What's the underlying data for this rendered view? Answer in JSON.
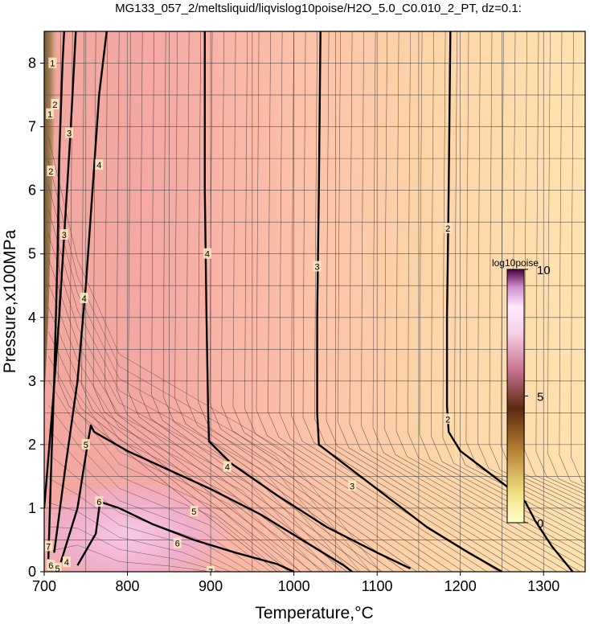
{
  "chart_data": {
    "type": "heatmap",
    "title": "MG133_057_2/meltsliquid/liqvislog10poise/H2O_5.0_C0.010_2_PT, dz=0.1:",
    "xlabel": "Temperature,°C",
    "ylabel": "Pressure,x100MPa",
    "xlim": [
      700,
      1350
    ],
    "ylim": [
      0,
      8.5
    ],
    "xticks": [
      "700",
      "800",
      "900",
      "1000",
      "1100",
      "1200",
      "1300"
    ],
    "yticks": [
      "0",
      "1",
      "2",
      "3",
      "4",
      "5",
      "6",
      "7",
      "8"
    ],
    "grid": true,
    "colorbar": {
      "title": "log10poise",
      "range": [
        0,
        10
      ],
      "tick_labels": [
        "0",
        "5",
        "10"
      ],
      "colors": [
        "#ffffcc",
        "#e8c060",
        "#6a3a10",
        "#c8648c",
        "#ffe0f8",
        "#f0d8ff",
        "#c060c0",
        "#4a0040"
      ],
      "placement": "right"
    },
    "contours": [
      {
        "level": 2,
        "points": [
          [
            705,
            0.2
          ],
          [
            708,
            1.5
          ],
          [
            712,
            3.0
          ],
          [
            716,
            5.0
          ],
          [
            718,
            6.5
          ],
          [
            722,
            8.0
          ],
          [
            724,
            8.5
          ]
        ]
      },
      {
        "level": 3,
        "points": [
          [
            700,
            1.0
          ],
          [
            710,
            2.6
          ],
          [
            718,
            4.0
          ],
          [
            725,
            5.5
          ],
          [
            732,
            7.0
          ],
          [
            738,
            8.5
          ]
        ]
      },
      {
        "level": 4,
        "points": [
          [
            712,
            0.3
          ],
          [
            725,
            1.6
          ],
          [
            740,
            3.0
          ],
          [
            750,
            4.5
          ],
          [
            758,
            6.0
          ],
          [
            766,
            7.5
          ],
          [
            775,
            8.5
          ]
        ]
      },
      {
        "level": 5,
        "points": [
          [
            720,
            0.15
          ],
          [
            740,
            1.0
          ],
          [
            752,
            2.0
          ],
          [
            756,
            2.3
          ],
          [
            760,
            2.2
          ],
          [
            800,
            1.9
          ],
          [
            850,
            1.6
          ],
          [
            900,
            1.3
          ],
          [
            960,
            0.9
          ],
          [
            1010,
            0.5
          ],
          [
            1060,
            0.1
          ],
          [
            1070,
            0
          ]
        ]
      },
      {
        "level": 6,
        "points": [
          [
            740,
            0.1
          ],
          [
            762,
            0.6
          ],
          [
            767,
            1.1
          ],
          [
            790,
            1.0
          ],
          [
            830,
            0.75
          ],
          [
            880,
            0.5
          ],
          [
            930,
            0.3
          ],
          [
            980,
            0.12
          ],
          [
            1000,
            0
          ]
        ]
      },
      {
        "level": 4,
        "points": [
          [
            893,
            8.5
          ],
          [
            893,
            6.0
          ],
          [
            895,
            4.0
          ],
          [
            897,
            2.5
          ],
          [
            898,
            2.05
          ],
          [
            925,
            1.7
          ],
          [
            980,
            1.2
          ],
          [
            1040,
            0.7
          ],
          [
            1100,
            0.3
          ],
          [
            1140,
            0.05
          ]
        ]
      },
      {
        "level": 3,
        "points": [
          [
            1032,
            8.5
          ],
          [
            1030,
            6.0
          ],
          [
            1028,
            4.0
          ],
          [
            1028,
            2.5
          ],
          [
            1030,
            2.0
          ],
          [
            1060,
            1.7
          ],
          [
            1110,
            1.2
          ],
          [
            1160,
            0.7
          ],
          [
            1210,
            0.3
          ],
          [
            1250,
            0
          ]
        ]
      },
      {
        "level": 2,
        "points": [
          [
            1188,
            8.5
          ],
          [
            1186,
            6.0
          ],
          [
            1184,
            4.0
          ],
          [
            1184,
            2.6
          ],
          [
            1186,
            2.2
          ],
          [
            1200,
            1.9
          ],
          [
            1230,
            1.6
          ],
          [
            1265,
            1.25
          ],
          [
            1278,
            1.1
          ],
          [
            1290,
            0.8
          ],
          [
            1310,
            0.4
          ],
          [
            1335,
            0
          ]
        ]
      }
    ],
    "contour_labels": [
      {
        "text": "1",
        "at": [
          710,
          8.0
        ]
      },
      {
        "text": "1",
        "at": [
          707,
          7.2
        ]
      },
      {
        "text": "2",
        "at": [
          713,
          7.35
        ]
      },
      {
        "text": "3",
        "at": [
          730,
          6.9
        ]
      },
      {
        "text": "2",
        "at": [
          708,
          6.3
        ]
      },
      {
        "text": "4",
        "at": [
          766,
          6.4
        ]
      },
      {
        "text": "3",
        "at": [
          724,
          5.3
        ]
      },
      {
        "text": "4",
        "at": [
          748,
          4.3
        ]
      },
      {
        "text": "5",
        "at": [
          750,
          2.0
        ]
      },
      {
        "text": "6",
        "at": [
          766,
          1.1
        ]
      },
      {
        "text": "7",
        "at": [
          705,
          0.4
        ]
      },
      {
        "text": "6",
        "at": [
          708,
          0.1
        ]
      },
      {
        "text": "5",
        "at": [
          716,
          0.05
        ]
      },
      {
        "text": "4",
        "at": [
          727,
          0.15
        ]
      },
      {
        "text": "4",
        "at": [
          896,
          5.0
        ]
      },
      {
        "text": "3",
        "at": [
          1028,
          4.8
        ]
      },
      {
        "text": "2",
        "at": [
          1185,
          5.4
        ]
      },
      {
        "text": "2",
        "at": [
          1185,
          2.4
        ]
      },
      {
        "text": "4",
        "at": [
          920,
          1.65
        ]
      },
      {
        "text": "3",
        "at": [
          1070,
          1.35
        ]
      },
      {
        "text": "5",
        "at": [
          880,
          0.95
        ]
      },
      {
        "text": "6",
        "at": [
          860,
          0.45
        ]
      },
      {
        "text": "7",
        "at": [
          900,
          0.0
        ]
      }
    ]
  }
}
